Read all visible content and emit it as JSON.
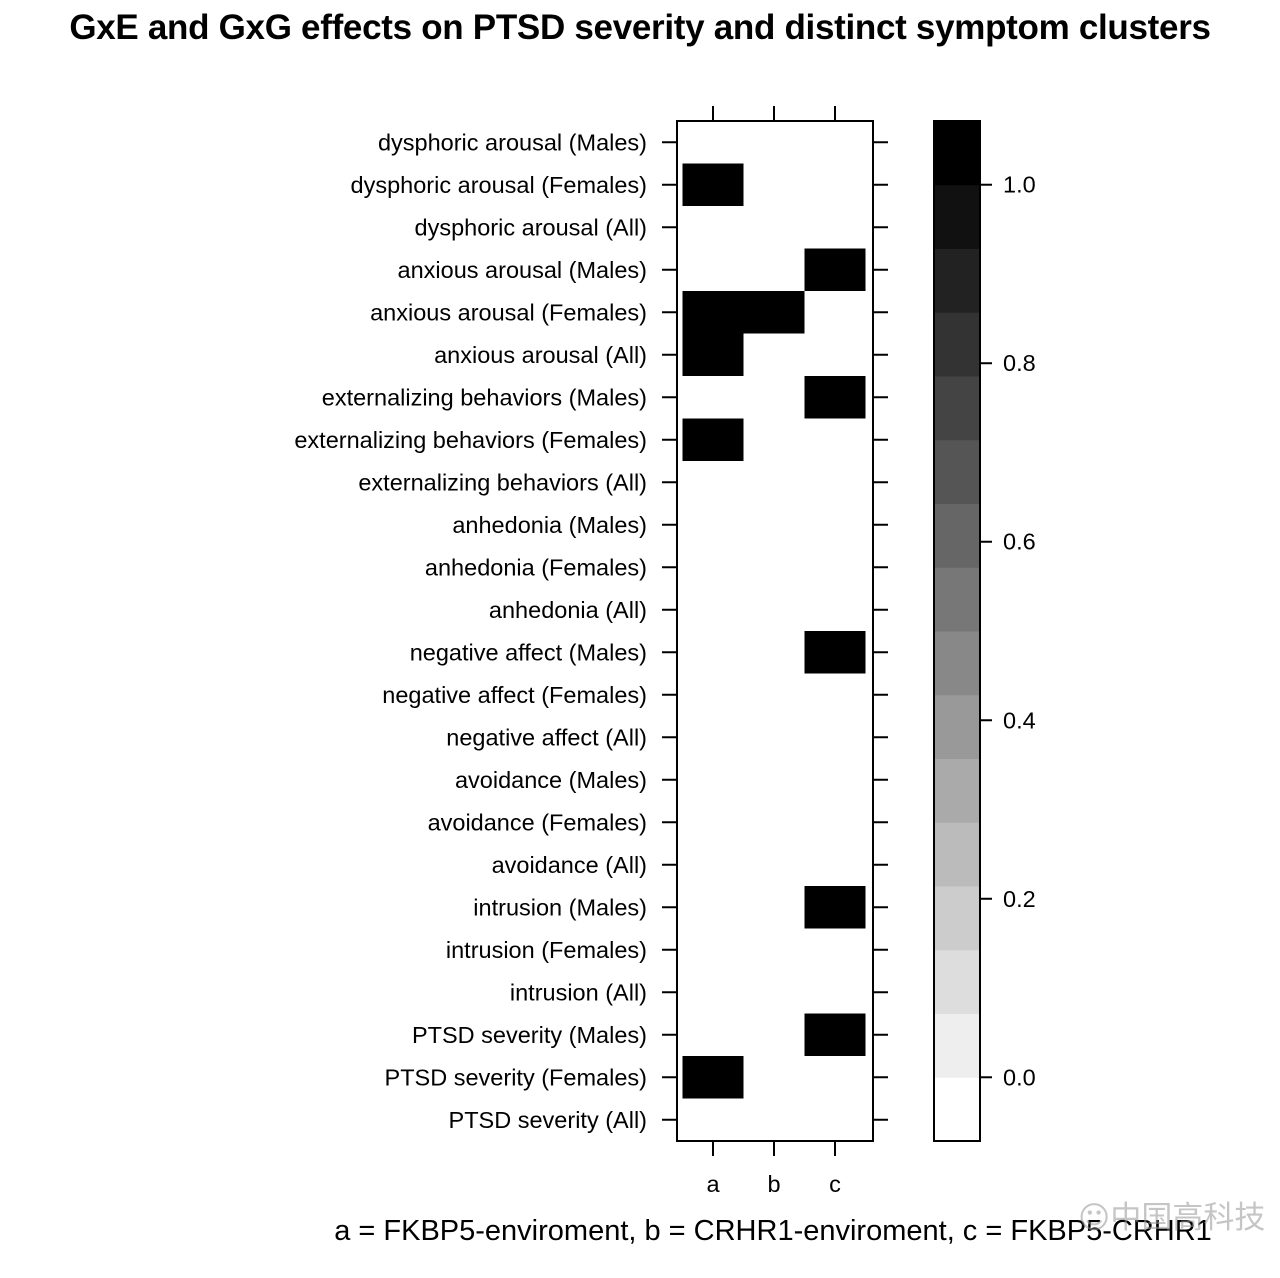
{
  "chart_data": {
    "type": "heatmap",
    "title": "GxE and GxG effects on PTSD severity and distinct symptom clusters",
    "xlabel": "",
    "ylabel": "",
    "footnote": "a = FKBP5-enviroment, b = CRHR1-enviroment, c = FKBP5-CRHR1",
    "x_categories": [
      "a",
      "b",
      "c"
    ],
    "y_categories_top_to_bottom": [
      "dysphoric arousal (Males)",
      "dysphoric arousal (Females)",
      "dysphoric arousal (All)",
      "anxious arousal (Males)",
      "anxious arousal (Females)",
      "anxious arousal (All)",
      "externalizing behaviors (Males)",
      "externalizing behaviors (Females)",
      "externalizing behaviors (All)",
      "anhedonia (Males)",
      "anhedonia (Females)",
      "anhedonia (All)",
      "negative affect (Males)",
      "negative affect (Females)",
      "negative affect (All)",
      "avoidance (Males)",
      "avoidance (Females)",
      "avoidance (All)",
      "intrusion (Males)",
      "intrusion (Females)",
      "intrusion (All)",
      "PTSD severity (Males)",
      "PTSD severity (Females)",
      "PTSD severity (All)"
    ],
    "values": [
      [
        0,
        0,
        0
      ],
      [
        1,
        0,
        0
      ],
      [
        0,
        0,
        0
      ],
      [
        0,
        0,
        1
      ],
      [
        1,
        1,
        0
      ],
      [
        1,
        0,
        0
      ],
      [
        0,
        0,
        1
      ],
      [
        1,
        0,
        0
      ],
      [
        0,
        0,
        0
      ],
      [
        0,
        0,
        0
      ],
      [
        0,
        0,
        0
      ],
      [
        0,
        0,
        0
      ],
      [
        0,
        0,
        1
      ],
      [
        0,
        0,
        0
      ],
      [
        0,
        0,
        0
      ],
      [
        0,
        0,
        0
      ],
      [
        0,
        0,
        0
      ],
      [
        0,
        0,
        0
      ],
      [
        0,
        0,
        1
      ],
      [
        0,
        0,
        0
      ],
      [
        0,
        0,
        0
      ],
      [
        0,
        0,
        1
      ],
      [
        1,
        0,
        0
      ],
      [
        0,
        0,
        0
      ]
    ],
    "colorbar": {
      "range": [
        -0.0714,
        1.0714
      ],
      "ticks": [
        0.0,
        0.2,
        0.4,
        0.6,
        0.8,
        1.0
      ],
      "tick_labels": [
        "0.0",
        "0.2",
        "0.4",
        "0.6",
        "0.8",
        "1.0"
      ],
      "bands": 16,
      "low_color": "#ffffff",
      "high_color": "#000000"
    },
    "grid": false,
    "legend_position": "right"
  },
  "watermark": "☺中国高科技"
}
